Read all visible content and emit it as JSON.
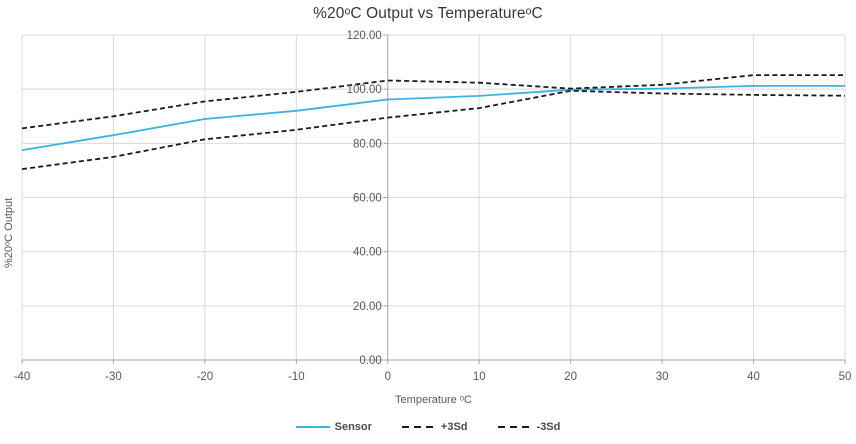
{
  "chart_data": {
    "type": "line",
    "title": "%20ᵒC Output vs TemperatureᵒC",
    "xlabel": "Temperature ᵒC",
    "ylabel": "%20ᵒC Output",
    "xlim": [
      -40,
      50
    ],
    "ylim": [
      0,
      120
    ],
    "x_ticks": [
      -40,
      -30,
      -20,
      -10,
      0,
      10,
      20,
      30,
      40,
      50
    ],
    "x_tick_labels": [
      "-40",
      "-30",
      "-20",
      "-10",
      "0",
      "10",
      "20",
      "30",
      "40",
      "50"
    ],
    "y_ticks": [
      0,
      20,
      40,
      60,
      80,
      100,
      120
    ],
    "y_tick_labels": [
      "0.00",
      "20.00",
      "40.00",
      "60.00",
      "80.00",
      "100.00",
      "120.00"
    ],
    "grid": true,
    "legend_position": "bottom",
    "x": [
      -40,
      -30,
      -20,
      -10,
      0,
      10,
      20,
      30,
      40,
      50
    ],
    "series": [
      {
        "name": "Sensor",
        "color": "#3ab3e3",
        "style": "solid",
        "values": [
          77.5,
          83.0,
          89.0,
          92.0,
          96.2,
          97.5,
          99.8,
          100.2,
          101.2,
          101.2
        ]
      },
      {
        "name": "+3Sd",
        "color": "#1a1a1a",
        "style": "dashed",
        "values": [
          85.5,
          90.0,
          95.5,
          99.0,
          103.2,
          102.4,
          100.2,
          101.6,
          105.2,
          105.2
        ]
      },
      {
        "name": "-3Sd",
        "color": "#1a1a1a",
        "style": "dashed",
        "values": [
          70.5,
          75.0,
          81.5,
          85.0,
          89.5,
          93.0,
          99.4,
          98.4,
          97.9,
          97.6
        ]
      }
    ],
    "colors": {
      "gridline": "#d9d9d9",
      "axis": "#a6a6a6",
      "tick_label": "#595959",
      "title_text": "#383838",
      "legend_text": "#4a4a4a"
    }
  }
}
